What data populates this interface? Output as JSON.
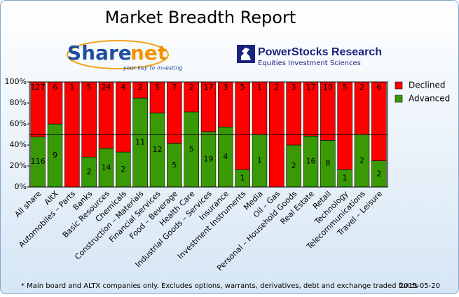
{
  "chart_data": {
    "type": "percent-stacked-bar",
    "title": "Market Breadth Report",
    "categories": [
      "All share",
      "AltX",
      "Automobiles – Parts",
      "Banks",
      "Basic Resources",
      "Chemicals",
      "Construction – Materials",
      "Financial Services",
      "Food – Beverage",
      "Health Care",
      "Industrial Goods – Services",
      "Insurance",
      "Investment Instruments",
      "Media",
      "Oil – Gas",
      "Personal – Household Goods",
      "Real Estate",
      "Retail",
      "Technology",
      "Telecommunications",
      "Travel – Leisure"
    ],
    "series": [
      {
        "name": "Advanced",
        "color": "#3a9a06",
        "values": [
          116,
          9,
          0,
          2,
          14,
          2,
          11,
          12,
          5,
          5,
          19,
          4,
          1,
          1,
          0,
          2,
          16,
          8,
          1,
          2,
          2
        ]
      },
      {
        "name": "Declined",
        "color": "#ff0000",
        "values": [
          127,
          6,
          1,
          5,
          24,
          4,
          2,
          5,
          7,
          2,
          17,
          3,
          5,
          1,
          2,
          3,
          17,
          10,
          5,
          2,
          6
        ]
      }
    ],
    "ylim": [
      0,
      100
    ],
    "yticks": [
      {
        "value": 0,
        "label": "0%"
      },
      {
        "value": 20,
        "label": "20%"
      },
      {
        "value": 40,
        "label": "40%"
      },
      {
        "value": 60,
        "label": "60%"
      },
      {
        "value": 80,
        "label": "80%"
      },
      {
        "value": 100,
        "label": "100%"
      }
    ],
    "reference_line": 50,
    "legend": "top-right",
    "footnote": "* Main board and ALTX companies only. Excludes options, warrants, derivatives, debt and exchange traded funds",
    "date": "2015-05-20"
  },
  "branding": {
    "sharenet_a": "Share",
    "sharenet_b": "net",
    "sharenet_tagline": "your key to investing",
    "powerstocks": "PowerStocks  Research",
    "powerstocks_tagline": "Equities Investment Sciences"
  }
}
